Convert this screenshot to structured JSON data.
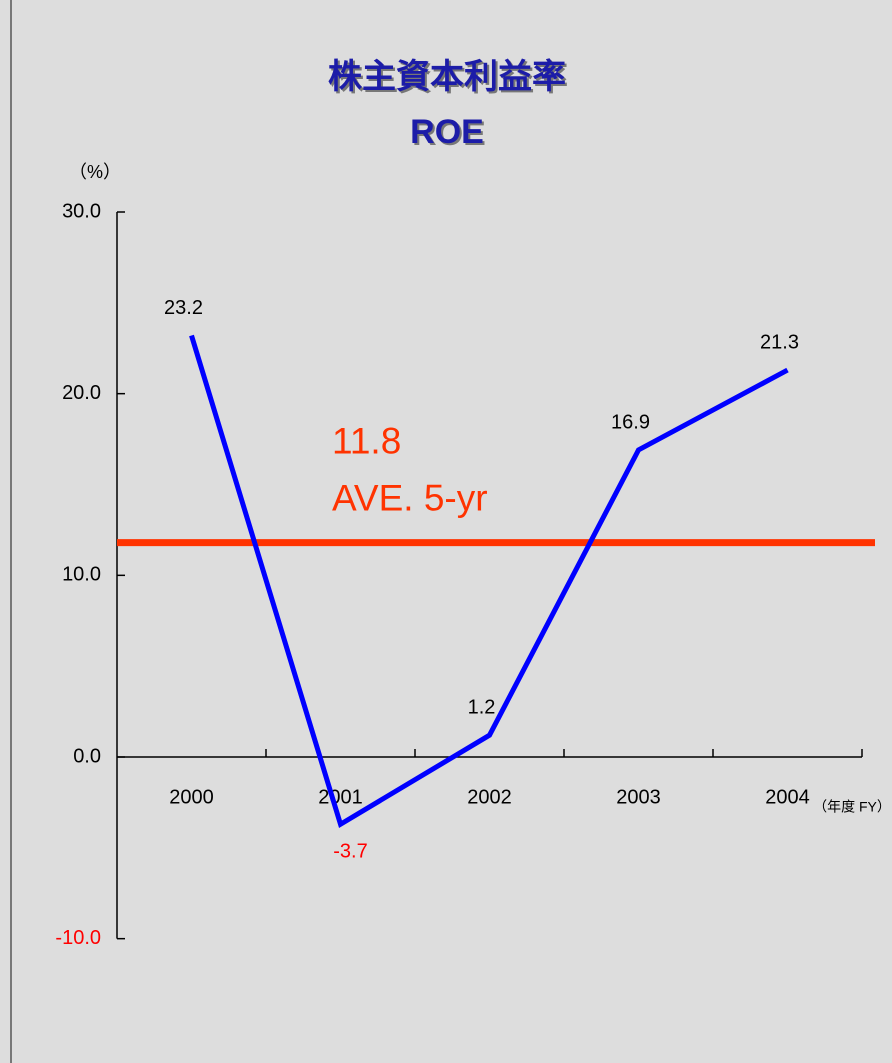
{
  "chart_data": {
    "type": "line",
    "title": "株主資本利益率",
    "subtitle": "ROE",
    "y_axis_label": "（%）",
    "x_axis_label": "（年度 FY）",
    "categories": [
      "2000",
      "2001",
      "2002",
      "2003",
      "2004"
    ],
    "series": [
      {
        "name": "ROE",
        "color": "#0000ff",
        "values": [
          23.2,
          -3.7,
          1.2,
          16.9,
          21.3
        ]
      }
    ],
    "label_color": "#000000",
    "negative_label_color": "#ff0000",
    "average": {
      "value": 11.8,
      "label": "AVE. 5-yr",
      "color": "#ff3300"
    },
    "ylim": [
      -10,
      30
    ],
    "yticks": [
      {
        "value": -10,
        "label": "-10.0"
      },
      {
        "value": 0,
        "label": "0.0"
      },
      {
        "value": 10,
        "label": "10.0"
      },
      {
        "value": 20,
        "label": "20.0"
      },
      {
        "value": 30,
        "label": "30.0"
      }
    ],
    "grid": false
  }
}
